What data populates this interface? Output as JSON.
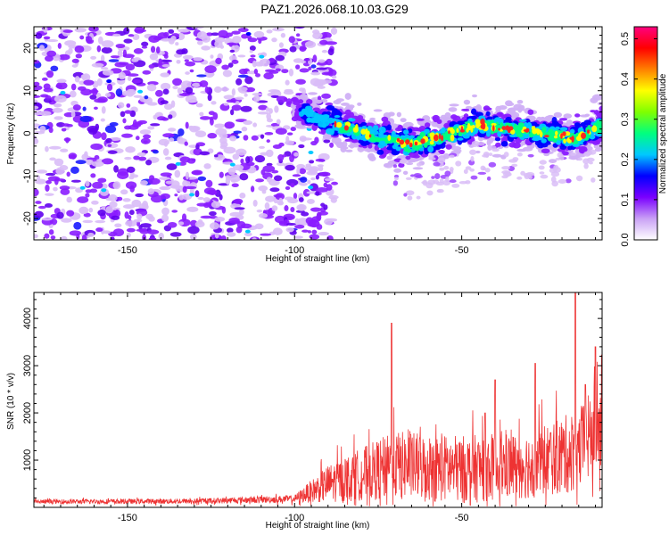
{
  "title": "PAZ1.2026.068.10.03.G29",
  "chart_data": [
    {
      "type": "heatmap",
      "title": "PAZ1.2026.068.10.03.G29",
      "xlabel": "Height of straight line (km)",
      "ylabel": "Frequency (Hz)",
      "xlim": [
        -178,
        -8
      ],
      "ylim": [
        -25,
        25
      ],
      "xticks": [
        -150,
        -100,
        -50
      ],
      "yticks": [
        -20,
        -10,
        0,
        10,
        20
      ],
      "ridge_center_hz": [
        {
          "x": -100,
          "y": 6.0
        },
        {
          "x": -95,
          "y": 4.0
        },
        {
          "x": -85,
          "y": 1.5
        },
        {
          "x": -75,
          "y": -1.0
        },
        {
          "x": -65,
          "y": -2.5
        },
        {
          "x": -55,
          "y": -0.5
        },
        {
          "x": -45,
          "y": 2.0
        },
        {
          "x": -35,
          "y": 1.0
        },
        {
          "x": -25,
          "y": 0.0
        },
        {
          "x": -15,
          "y": -1.0
        },
        {
          "x": -8,
          "y": 2.0
        }
      ],
      "noise_region_x": [
        -178,
        -92
      ],
      "colorbar": {
        "label": "Normalized spectral amplitude",
        "min": 0.0,
        "max": 0.53,
        "ticks": [
          "0.0",
          "0.1",
          "0.2",
          "0.3",
          "0.4",
          "0.5"
        ],
        "colors": [
          "#ffffff",
          "#c9a0f5",
          "#7a00ff",
          "#0000ff",
          "#00c8ff",
          "#00ff7f",
          "#7fff00",
          "#ffff00",
          "#ff8000",
          "#ff0000",
          "#ff0080"
        ]
      }
    },
    {
      "type": "line",
      "xlabel": "Height of straight line (km)",
      "ylabel": "SNR (10 * v/v)",
      "xlim": [
        -178,
        -8
      ],
      "ylim": [
        0,
        4550
      ],
      "xticks": [
        -150,
        -100,
        -50
      ],
      "yticks": [
        1000,
        2000,
        3000,
        4000
      ],
      "line_color": "#ee3333",
      "envelope": [
        {
          "x": -178,
          "baseline": 120,
          "amplitude": 60
        },
        {
          "x": -130,
          "baseline": 130,
          "amplitude": 70
        },
        {
          "x": -100,
          "baseline": 180,
          "amplitude": 100
        },
        {
          "x": -90,
          "baseline": 500,
          "amplitude": 500
        },
        {
          "x": -70,
          "baseline": 900,
          "amplitude": 900
        },
        {
          "x": -50,
          "baseline": 800,
          "amplitude": 900
        },
        {
          "x": -30,
          "baseline": 900,
          "amplitude": 900
        },
        {
          "x": -15,
          "baseline": 1200,
          "amplitude": 1100
        },
        {
          "x": -8,
          "baseline": 1800,
          "amplitude": 1300
        }
      ],
      "peaks": [
        {
          "x": -71,
          "y": 3900
        },
        {
          "x": -40,
          "y": 2700
        },
        {
          "x": -43,
          "y": 2000
        },
        {
          "x": -28,
          "y": 3050
        },
        {
          "x": -16,
          "y": 4550
        },
        {
          "x": -10,
          "y": 3400
        },
        {
          "x": -13,
          "y": 2600
        }
      ]
    }
  ]
}
